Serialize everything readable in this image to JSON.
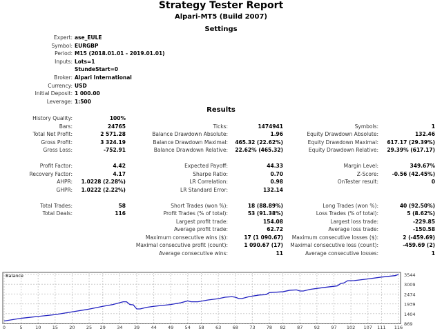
{
  "title": "Strategy Tester Report",
  "subtitle": "Alpari-MT5 (Build 2007)",
  "settings_heading": "Settings",
  "settings": [
    {
      "label": "Expert:",
      "value": "ase_EULE"
    },
    {
      "label": "Symbol:",
      "value": "EURGBP"
    },
    {
      "label": "Period:",
      "value": "M15 (2018.01.01 - 2019.01.01)"
    },
    {
      "label": "Inputs:",
      "value": "Lots=1"
    },
    {
      "label": "",
      "value": "StundeStart=0"
    },
    {
      "label": "Broker:",
      "value": "Alpari International"
    },
    {
      "label": "Currency:",
      "value": "USD"
    },
    {
      "label": "Initial Deposit:",
      "value": "1 000.00"
    },
    {
      "label": "Leverage:",
      "value": "1:500"
    }
  ],
  "results_heading": "Results",
  "results": [
    [
      {
        "label": "History Quality:",
        "value": "100%"
      },
      null,
      null
    ],
    [
      {
        "label": "Bars:",
        "value": "24765"
      },
      {
        "label": "Ticks:",
        "value": "1474941"
      },
      {
        "label": "Symbols:",
        "value": "1"
      }
    ],
    [
      {
        "label": "Total Net Profit:",
        "value": "2 571.28"
      },
      {
        "label": "Balance Drawdown Absolute:",
        "value": "1.96"
      },
      {
        "label": "Equity Drawdown Absolute:",
        "value": "132.46"
      }
    ],
    [
      {
        "label": "Gross Profit:",
        "value": "3 324.19"
      },
      {
        "label": "Balance Drawdown Maximal:",
        "value": "465.32 (22.62%)"
      },
      {
        "label": "Equity Drawdown Maximal:",
        "value": "617.17 (29.39%)"
      }
    ],
    [
      {
        "label": "Gross Loss:",
        "value": "-752.91"
      },
      {
        "label": "Balance Drawdown Relative:",
        "value": "22.62% (465.32)"
      },
      {
        "label": "Equity Drawdown Relative:",
        "value": "29.39% (617.17)"
      }
    ],
    null,
    [
      {
        "label": "Profit Factor:",
        "value": "4.42"
      },
      {
        "label": "Expected Payoff:",
        "value": "44.33"
      },
      {
        "label": "Margin Level:",
        "value": "349.67%"
      }
    ],
    [
      {
        "label": "Recovery Factor:",
        "value": "4.17"
      },
      {
        "label": "Sharpe Ratio:",
        "value": "0.70"
      },
      {
        "label": "Z-Score:",
        "value": "-0.56 (42.45%)"
      }
    ],
    [
      {
        "label": "AHPR:",
        "value": "1.0228 (2.28%)"
      },
      {
        "label": "LR Correlation:",
        "value": "0.98"
      },
      {
        "label": "OnTester result:",
        "value": "0"
      }
    ],
    [
      {
        "label": "GHPR:",
        "value": "1.0222 (2.22%)"
      },
      {
        "label": "LR Standard Error:",
        "value": "132.14"
      },
      null
    ],
    null,
    [
      {
        "label": "Total Trades:",
        "value": "58"
      },
      {
        "label": "Short Trades (won %):",
        "value": "18 (88.89%)"
      },
      {
        "label": "Long Trades (won %):",
        "value": "40 (92.50%)"
      }
    ],
    [
      {
        "label": "Total Deals:",
        "value": "116"
      },
      {
        "label": "Profit Trades (% of total):",
        "value": "53 (91.38%)"
      },
      {
        "label": "Loss Trades (% of total):",
        "value": "5 (8.62%)"
      }
    ],
    [
      null,
      {
        "label": "Largest profit trade:",
        "value": "154.08"
      },
      {
        "label": "Largest loss trade:",
        "value": "-229.85"
      }
    ],
    [
      null,
      {
        "label": "Average profit trade:",
        "value": "62.72"
      },
      {
        "label": "Average loss trade:",
        "value": "-150.58"
      }
    ],
    [
      null,
      {
        "label": "Maximum consecutive wins ($):",
        "value": "17 (1 090.67)"
      },
      {
        "label": "Maximum consecutive losses ($):",
        "value": "2 (-459.69)"
      }
    ],
    [
      null,
      {
        "label": "Maximal consecutive profit (count):",
        "value": "1 090.67 (17)"
      },
      {
        "label": "Maximal consecutive loss (count):",
        "value": "-459.69 (2)"
      }
    ],
    [
      null,
      {
        "label": "Average consecutive wins:",
        "value": "11"
      },
      {
        "label": "Average consecutive losses:",
        "value": "1"
      }
    ]
  ],
  "chart_data": {
    "type": "line",
    "title": "Balance",
    "xlim": [
      0,
      116
    ],
    "ylim": [
      869,
      3544
    ],
    "x_ticks": [
      0,
      5,
      10,
      15,
      20,
      25,
      29,
      34,
      39,
      44,
      49,
      54,
      58,
      63,
      68,
      73,
      78,
      82,
      87,
      92,
      97,
      102,
      107,
      111,
      116
    ],
    "y_ticks": [
      869,
      1404,
      1939,
      2474,
      3009,
      3544
    ],
    "grid": true,
    "line_color": "#2020c0",
    "series": [
      {
        "points": [
          [
            0,
            1000
          ],
          [
            5,
            1150
          ],
          [
            10,
            1250
          ],
          [
            15,
            1350
          ],
          [
            20,
            1500
          ],
          [
            25,
            1650
          ],
          [
            29,
            1800
          ],
          [
            32,
            1900
          ],
          [
            35,
            2050
          ],
          [
            36,
            2050
          ],
          [
            37,
            1900
          ],
          [
            38,
            1880
          ],
          [
            39,
            1660
          ],
          [
            40,
            1660
          ],
          [
            42,
            1750
          ],
          [
            44,
            1800
          ],
          [
            49,
            1900
          ],
          [
            52,
            2000
          ],
          [
            54,
            2100
          ],
          [
            55,
            2050
          ],
          [
            57,
            2050
          ],
          [
            60,
            2150
          ],
          [
            63,
            2220
          ],
          [
            65,
            2300
          ],
          [
            67,
            2330
          ],
          [
            68,
            2300
          ],
          [
            69,
            2230
          ],
          [
            70,
            2230
          ],
          [
            72,
            2330
          ],
          [
            75,
            2420
          ],
          [
            77,
            2440
          ],
          [
            78,
            2550
          ],
          [
            82,
            2600
          ],
          [
            84,
            2680
          ],
          [
            86,
            2700
          ],
          [
            87,
            2640
          ],
          [
            88,
            2640
          ],
          [
            90,
            2730
          ],
          [
            94,
            2830
          ],
          [
            98,
            2920
          ],
          [
            99,
            3050
          ],
          [
            100,
            3080
          ],
          [
            101,
            3200
          ],
          [
            103,
            3210
          ],
          [
            107,
            3300
          ],
          [
            111,
            3400
          ],
          [
            115,
            3480
          ],
          [
            116,
            3544
          ]
        ]
      }
    ]
  }
}
